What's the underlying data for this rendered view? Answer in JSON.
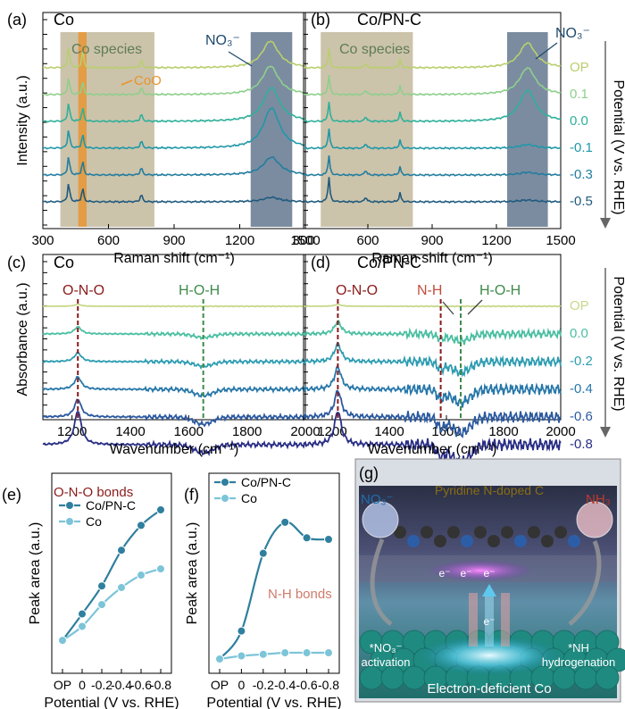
{
  "colors": {
    "OP": "#b9cf6e",
    "0.1": "#8fcf8c",
    "0.0": "#2fb09a",
    "-0.1": "#1f98a8",
    "-0.3": "#237d9e",
    "-0.5": "#1f5a7e",
    "ir_OP": "#c7d98a",
    "ir_0.0": "#4cbfa2",
    "ir_-0.2": "#2e9db2",
    "ir_-0.4": "#2878aa",
    "ir_-0.6": "#2c5aa0",
    "ir_-0.8": "#2b2f86",
    "dashRed": "#8b1a1a",
    "dashGreen": "#3f8a4a",
    "coShade": "#b9ac8a",
    "no3Shade": "#6d8096",
    "coo": "#e8932c",
    "pyridine": "#8a6d12",
    "nh3": "#c0392b",
    "no3text": "#2c6f9c",
    "lineCoPNC": "#2f7f9e",
    "lineCo": "#7cc4d8",
    "nhText": "#d07a6a",
    "onoText": "#8b1a1a"
  },
  "chart_data": [
    {
      "type": "line",
      "panel": "(a)",
      "title": "Co",
      "xlabel": "Raman shift (cm⁻¹)",
      "ylabel": "Intensity (a.u.)",
      "xlim": [
        300,
        1500
      ],
      "xticks": [
        "300",
        "600",
        "900",
        "1200",
        "1500"
      ],
      "annotations": [
        "Co species",
        "CoO",
        "NO₃⁻"
      ],
      "shaded_regions": [
        [
          380,
          810
        ],
        [
          1250,
          1440
        ]
      ],
      "series": [
        {
          "name": "OP",
          "peaks": [
            [
              418,
              25
            ],
            [
              482,
              20
            ],
            [
              750,
              10
            ],
            [
              1340,
              30
            ]
          ]
        },
        {
          "name": "0.1",
          "peaks": [
            [
              418,
              20
            ],
            [
              482,
              15
            ],
            [
              750,
              9
            ],
            [
              1340,
              32
            ]
          ]
        },
        {
          "name": "0.0",
          "peaks": [
            [
              418,
              22
            ],
            [
              482,
              16
            ],
            [
              750,
              9
            ],
            [
              1345,
              38
            ]
          ]
        },
        {
          "name": "-0.1",
          "peaks": [
            [
              418,
              22
            ],
            [
              482,
              16
            ],
            [
              750,
              9
            ],
            [
              1345,
              45
            ]
          ]
        },
        {
          "name": "-0.3",
          "peaks": [
            [
              418,
              22
            ],
            [
              482,
              16
            ],
            [
              750,
              9
            ],
            [
              1345,
              20
            ]
          ]
        },
        {
          "name": "-0.5",
          "peaks": [
            [
              418,
              22
            ],
            [
              482,
              16
            ],
            [
              750,
              9
            ],
            [
              1345,
              5
            ]
          ]
        }
      ]
    },
    {
      "type": "line",
      "panel": "(b)",
      "title": "Co/PN-C",
      "xlabel": "Raman shift (cm⁻¹)",
      "ylabel": "Potential (V vs. RHE)",
      "xlim": [
        300,
        1500
      ],
      "xticks": [
        "300",
        "600",
        "900",
        "1200",
        "1500"
      ],
      "annotations": [
        "Co species",
        "NO₃⁻"
      ],
      "shaded_regions": [
        [
          380,
          810
        ],
        [
          1250,
          1440
        ]
      ],
      "series": [
        {
          "name": "OP",
          "label": "OP",
          "peaks": [
            [
              418,
              22
            ],
            [
              590,
              6
            ],
            [
              750,
              10
            ],
            [
              1345,
              28
            ]
          ]
        },
        {
          "name": "0.1",
          "label": "0.1",
          "peaks": [
            [
              418,
              22
            ],
            [
              590,
              6
            ],
            [
              750,
              10
            ],
            [
              1345,
              30
            ]
          ]
        },
        {
          "name": "0.0",
          "label": "0.0",
          "peaks": [
            [
              418,
              22
            ],
            [
              590,
              6
            ],
            [
              750,
              10
            ],
            [
              1345,
              35
            ]
          ]
        },
        {
          "name": "-0.1",
          "label": "-0.1",
          "peaks": [
            [
              418,
              22
            ],
            [
              590,
              6
            ],
            [
              750,
              9
            ],
            [
              1345,
              4
            ]
          ]
        },
        {
          "name": "-0.3",
          "label": "-0.3",
          "peaks": [
            [
              418,
              22
            ],
            [
              590,
              6
            ],
            [
              750,
              9
            ],
            [
              1345,
              3
            ]
          ]
        },
        {
          "name": "-0.5",
          "label": "-0.5",
          "peaks": [
            [
              418,
              28
            ],
            [
              590,
              6
            ],
            [
              750,
              10
            ],
            [
              1345,
              2
            ]
          ]
        }
      ]
    },
    {
      "type": "line",
      "panel": "(c)",
      "title": "Co",
      "xlabel": "Wavenumber (cm⁻¹)",
      "ylabel": "Absorbance (a.u.)",
      "xlim": [
        1100,
        2000
      ],
      "xticks": [
        "1200",
        "1400",
        "1600",
        "1800",
        "2000"
      ],
      "annotations": [
        "O-N-O",
        "H-O-H"
      ],
      "dashed_lines": [
        1220,
        1650
      ],
      "series": [
        {
          "name": "OP",
          "ono": 2,
          "hoh": 0,
          "noise": 0.3
        },
        {
          "name": "0.0",
          "ono": 8,
          "hoh": 4,
          "noise": 1.2
        },
        {
          "name": "-0.2",
          "ono": 10,
          "hoh": 5,
          "noise": 1.3
        },
        {
          "name": "-0.4",
          "ono": 14,
          "hoh": 7,
          "noise": 1.5
        },
        {
          "name": "-0.6",
          "ono": 20,
          "hoh": 8,
          "noise": 1.6
        },
        {
          "name": "-0.8",
          "ono": 38,
          "hoh": 9,
          "noise": 1.8
        }
      ]
    },
    {
      "type": "line",
      "panel": "(d)",
      "title": "Co/PN-C",
      "xlabel": "Wavenumber (cm⁻¹)",
      "ylabel": "Potential (V vs. RHE)",
      "xlim": [
        1100,
        2000
      ],
      "xticks": [
        "1200",
        "1400",
        "1600",
        "1800",
        "2000"
      ],
      "annotations": [
        "O-N-O",
        "N-H",
        "H-O-H"
      ],
      "dashed_lines": [
        1220,
        1580,
        1650
      ],
      "series": [
        {
          "name": "OP",
          "label": "OP",
          "ono": 2,
          "hoh": 0,
          "noise": 0.3
        },
        {
          "name": "0.0",
          "label": "0.0",
          "ono": 14,
          "hoh": 8,
          "noise": 3
        },
        {
          "name": "-0.2",
          "label": "-0.2",
          "ono": 20,
          "hoh": 12,
          "noise": 3.5
        },
        {
          "name": "-0.4",
          "label": "-0.4",
          "ono": 25,
          "hoh": 15,
          "noise": 4
        },
        {
          "name": "-0.6",
          "label": "-0.6",
          "ono": 30,
          "hoh": 18,
          "noise": 4.2
        },
        {
          "name": "-0.8",
          "label": "-0.8",
          "ono": 38,
          "hoh": 20,
          "noise": 4.5
        }
      ]
    },
    {
      "type": "line",
      "panel": "(e)",
      "title": "O-N-O bonds",
      "xlabel": "Potential (V vs. RHE)",
      "ylabel": "Peak area (a.u.)",
      "categories": [
        "OP",
        "0",
        "-0.2",
        "-0.4",
        "-0.6",
        "-0.8"
      ],
      "ylim": [
        0,
        1
      ],
      "series": [
        {
          "name": "Co/PN-C",
          "values": [
            0.12,
            0.29,
            0.47,
            0.7,
            0.86,
            0.96
          ]
        },
        {
          "name": "Co",
          "values": [
            0.12,
            0.21,
            0.35,
            0.46,
            0.54,
            0.58
          ]
        }
      ]
    },
    {
      "type": "line",
      "panel": "(f)",
      "title": "N-H bonds",
      "xlabel": "Potential (V vs. RHE)",
      "ylabel": "Peak area (a.u.)",
      "categories": [
        "OP",
        "0",
        "-0.2",
        "-0.4",
        "-0.6",
        "-0.8"
      ],
      "ylim": [
        0,
        1
      ],
      "series": [
        {
          "name": "Co/PN-C",
          "values": [
            0.0,
            0.18,
            0.68,
            0.88,
            0.78,
            0.77
          ]
        },
        {
          "name": "Co",
          "values": [
            0.0,
            0.02,
            0.03,
            0.04,
            0.04,
            0.04
          ]
        }
      ]
    }
  ],
  "schematic": {
    "panel": "(g)",
    "pyridine_label": "Pyridine N-doped C",
    "no3_label": "NO₃⁻",
    "nh3_label": "NH₃",
    "activation_label1": "*NO₃⁻",
    "activation_label2": "activation",
    "hydrog_label1": "*NH",
    "hydrog_label2": "hydrogenation",
    "bottom_label": "Electron-deficient Co",
    "electron": "e⁻"
  }
}
